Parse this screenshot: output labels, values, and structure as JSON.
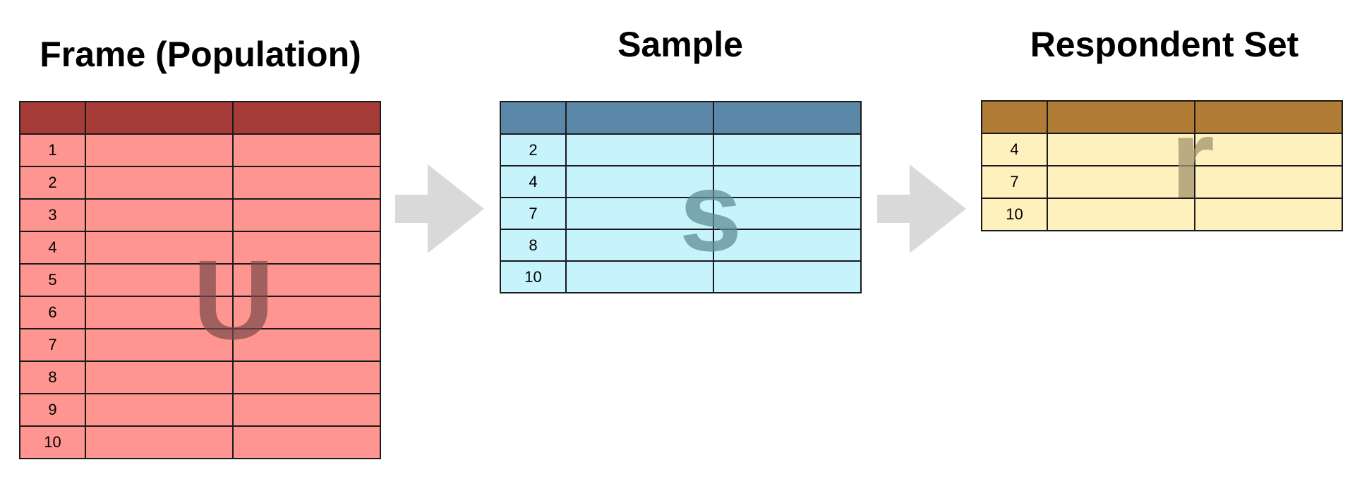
{
  "frame": {
    "title": "Frame (Population)",
    "symbol": "U",
    "header_color": "#a63c38",
    "body_color": "#ff9590",
    "symbol_color": "#7a4a48",
    "rows": [
      "1",
      "2",
      "3",
      "4",
      "5",
      "6",
      "7",
      "8",
      "9",
      "10"
    ]
  },
  "sample": {
    "title": "Sample",
    "symbol": "s",
    "header_color": "#5b88a8",
    "body_color": "#c6f3fc",
    "symbol_color": "#5e8d98",
    "rows": [
      "2",
      "4",
      "7",
      "8",
      "10"
    ]
  },
  "respondents": {
    "title": "Respondent Set",
    "symbol": "r",
    "header_color": "#b07c36",
    "body_color": "#fff1be",
    "symbol_color": "#a39470",
    "rows": [
      "4",
      "7",
      "10"
    ]
  },
  "arrow_color": "#d9d9d9"
}
